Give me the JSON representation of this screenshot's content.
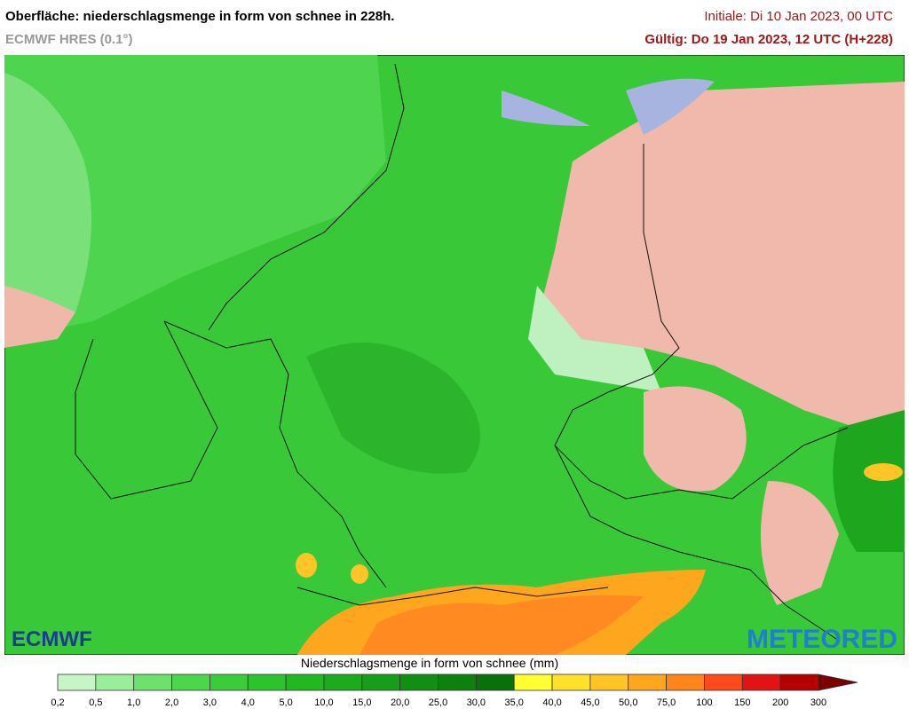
{
  "header": {
    "title": "Oberfläche: niederschlagsmenge in form von schnee in 228h.",
    "model": "ECMWF HRES (0.1°)",
    "initial": "Initiale: Di 10 Jan 2023, 00 UTC",
    "valid": "Gültig: Do 19 Jan 2023, 12 UTC (H+228)"
  },
  "logos": {
    "left": "ECMWF",
    "right": "METEORED"
  },
  "legend": {
    "title": "Niederschlagsmenge in form von schnee (mm)",
    "labels": [
      "0,2",
      "0,5",
      "1,0",
      "2,0",
      "3,0",
      "4,0",
      "5,0",
      "10,0",
      "15,0",
      "20,0",
      "25,0",
      "30,0",
      "35,0",
      "40,0",
      "45,0",
      "50,0",
      "75,0",
      "100",
      "150",
      "200",
      "300"
    ],
    "colors": [
      "#c8f5c8",
      "#9aee9a",
      "#6ee06e",
      "#4cd64c",
      "#3acd3a",
      "#2cc42c",
      "#22b822",
      "#1cab1c",
      "#179d17",
      "#128f12",
      "#0e800e",
      "#0a700a",
      "#ffff33",
      "#ffe02a",
      "#ffc425",
      "#ffa61f",
      "#ff8419",
      "#ff4a1a",
      "#e01414",
      "#b40000",
      "#7a0000"
    ]
  }
}
